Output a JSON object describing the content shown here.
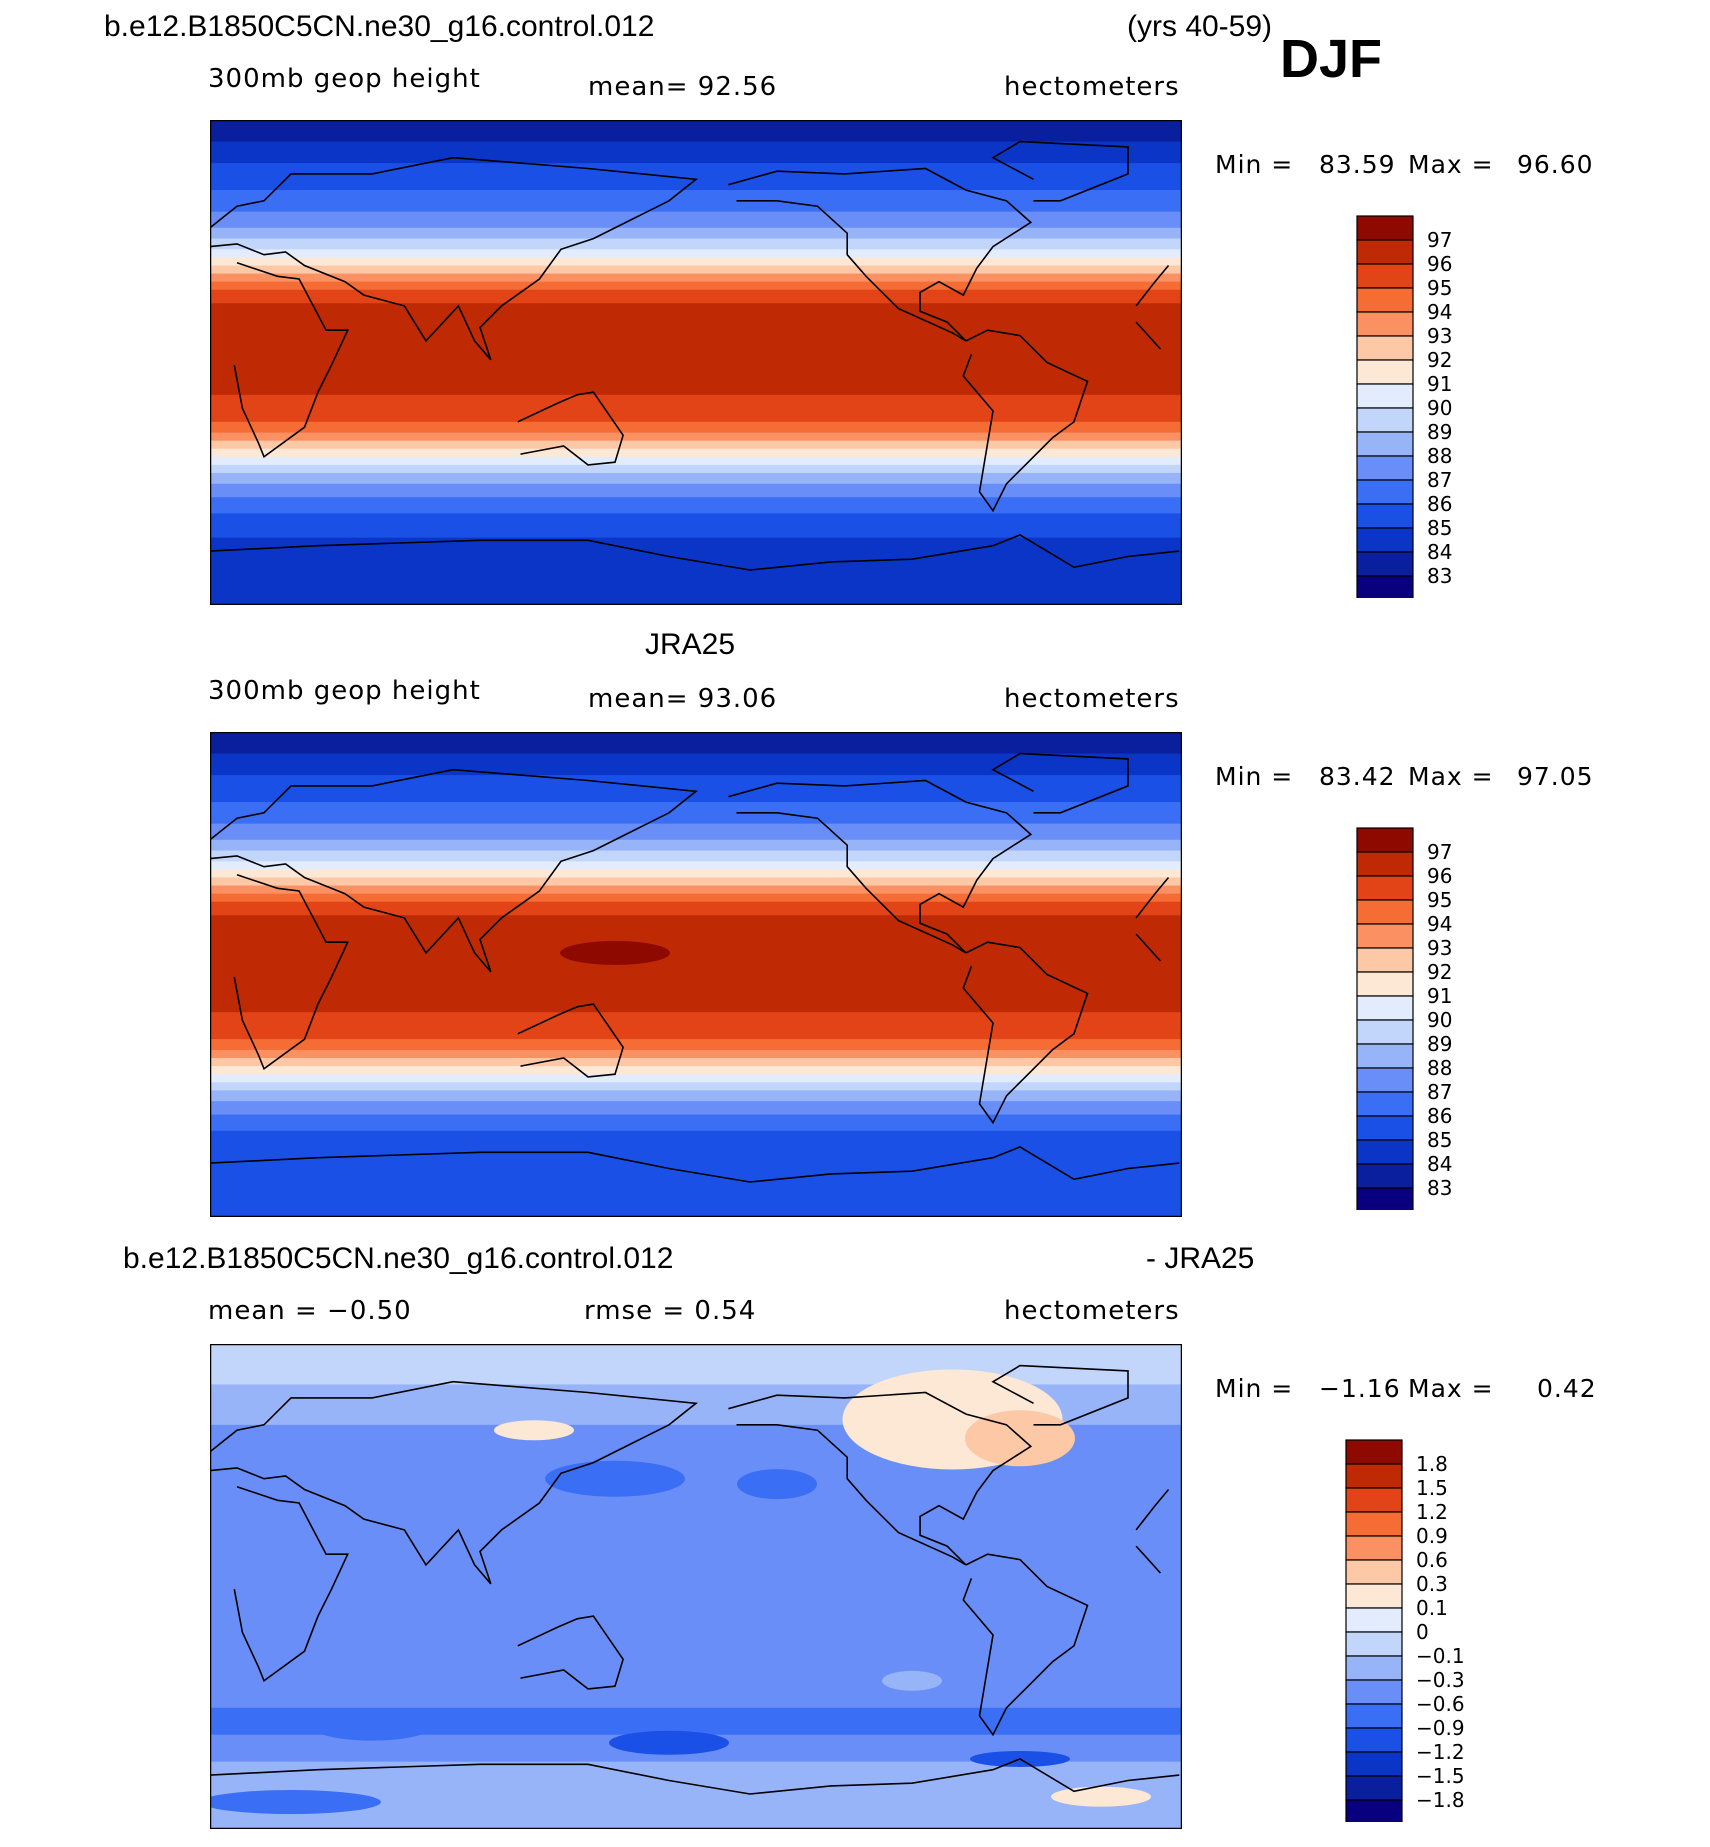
{
  "page": {
    "title": "b.e12.B1850C5CN.ne30_g16.control.012",
    "years": "(yrs 40-59)",
    "season": "DJF"
  },
  "panels": [
    {
      "id": "model",
      "title": "",
      "left_label": "300mb geop height",
      "center_label": "mean=  92.56",
      "units": "hectometers",
      "min_label": "Min =",
      "min_value": "83.59",
      "max_label": "Max =",
      "max_value": "96.60",
      "colorbar_labels": [
        "97",
        "96",
        "95",
        "94",
        "93",
        "92",
        "91",
        "90",
        "89",
        "88",
        "87",
        "86",
        "85",
        "84",
        "83"
      ]
    },
    {
      "id": "obs",
      "title": "JRA25",
      "left_label": "300mb geop height",
      "center_label": "mean=  93.06",
      "units": "hectometers",
      "min_label": "Min =",
      "min_value": "83.42",
      "max_label": "Max =",
      "max_value": "97.05",
      "colorbar_labels": [
        "97",
        "96",
        "95",
        "94",
        "93",
        "92",
        "91",
        "90",
        "89",
        "88",
        "87",
        "86",
        "85",
        "84",
        "83"
      ]
    },
    {
      "id": "diff",
      "title": "b.e12.B1850C5CN.ne30_g16.control.012",
      "title_right": "- JRA25",
      "left_label": "mean =  −0.50",
      "center_label": "rmse =   0.54",
      "units": "hectometers",
      "min_label": "Min =",
      "min_value": "−1.16",
      "max_label": "Max =",
      "max_value": "0.42",
      "colorbar_labels": [
        "1.8",
        "1.5",
        "1.2",
        "0.9",
        "0.6",
        "0.3",
        "0.1",
        "0",
        "−0.1",
        "−0.3",
        "−0.6",
        "−0.9",
        "−1.2",
        "−1.5",
        "−1.8"
      ]
    }
  ],
  "chart_data": [
    {
      "type": "heatmap",
      "title": "b.e12.B1850C5CN.ne30_g16.control.012",
      "variable": "300mb geop height",
      "units": "hectometers",
      "mean": 92.56,
      "min": 83.59,
      "max": 96.6,
      "contour_levels": [
        83,
        84,
        85,
        86,
        87,
        88,
        89,
        90,
        91,
        92,
        93,
        94,
        95,
        96,
        97
      ],
      "colors": [
        "#08007f",
        "#0a1f9e",
        "#0b35c6",
        "#1a50e6",
        "#3a6ef5",
        "#6a8ef7",
        "#98b4f9",
        "#c2d6fb",
        "#e2ecfd",
        "#fde8d6",
        "#fcc8a6",
        "#fb9062",
        "#f56d35",
        "#e34417",
        "#bf2a05",
        "#8e0a00"
      ]
    },
    {
      "type": "heatmap",
      "title": "JRA25",
      "variable": "300mb geop height",
      "units": "hectometers",
      "mean": 93.06,
      "min": 83.42,
      "max": 97.05,
      "contour_levels": [
        83,
        84,
        85,
        86,
        87,
        88,
        89,
        90,
        91,
        92,
        93,
        94,
        95,
        96,
        97
      ],
      "colors": [
        "#08007f",
        "#0a1f9e",
        "#0b35c6",
        "#1a50e6",
        "#3a6ef5",
        "#6a8ef7",
        "#98b4f9",
        "#c2d6fb",
        "#e2ecfd",
        "#fde8d6",
        "#fcc8a6",
        "#fb9062",
        "#f56d35",
        "#e34417",
        "#bf2a05",
        "#8e0a00"
      ]
    },
    {
      "type": "heatmap",
      "title": "b.e12.B1850C5CN.ne30_g16.control.012 - JRA25",
      "units": "hectometers",
      "mean": -0.5,
      "rmse": 0.54,
      "min": -1.16,
      "max": 0.42,
      "contour_levels": [
        -1.8,
        -1.5,
        -1.2,
        -0.9,
        -0.6,
        -0.3,
        -0.1,
        0,
        0.1,
        0.3,
        0.6,
        0.9,
        1.2,
        1.5,
        1.8
      ],
      "colors": [
        "#08007f",
        "#0a1f9e",
        "#0b35c6",
        "#1a50e6",
        "#3a6ef5",
        "#6a8ef7",
        "#98b4f9",
        "#c2d6fb",
        "#e2ecfd",
        "#fde8d6",
        "#fcc8a6",
        "#fb9062",
        "#f56d35",
        "#e34417",
        "#bf2a05",
        "#8e0a00"
      ]
    }
  ]
}
